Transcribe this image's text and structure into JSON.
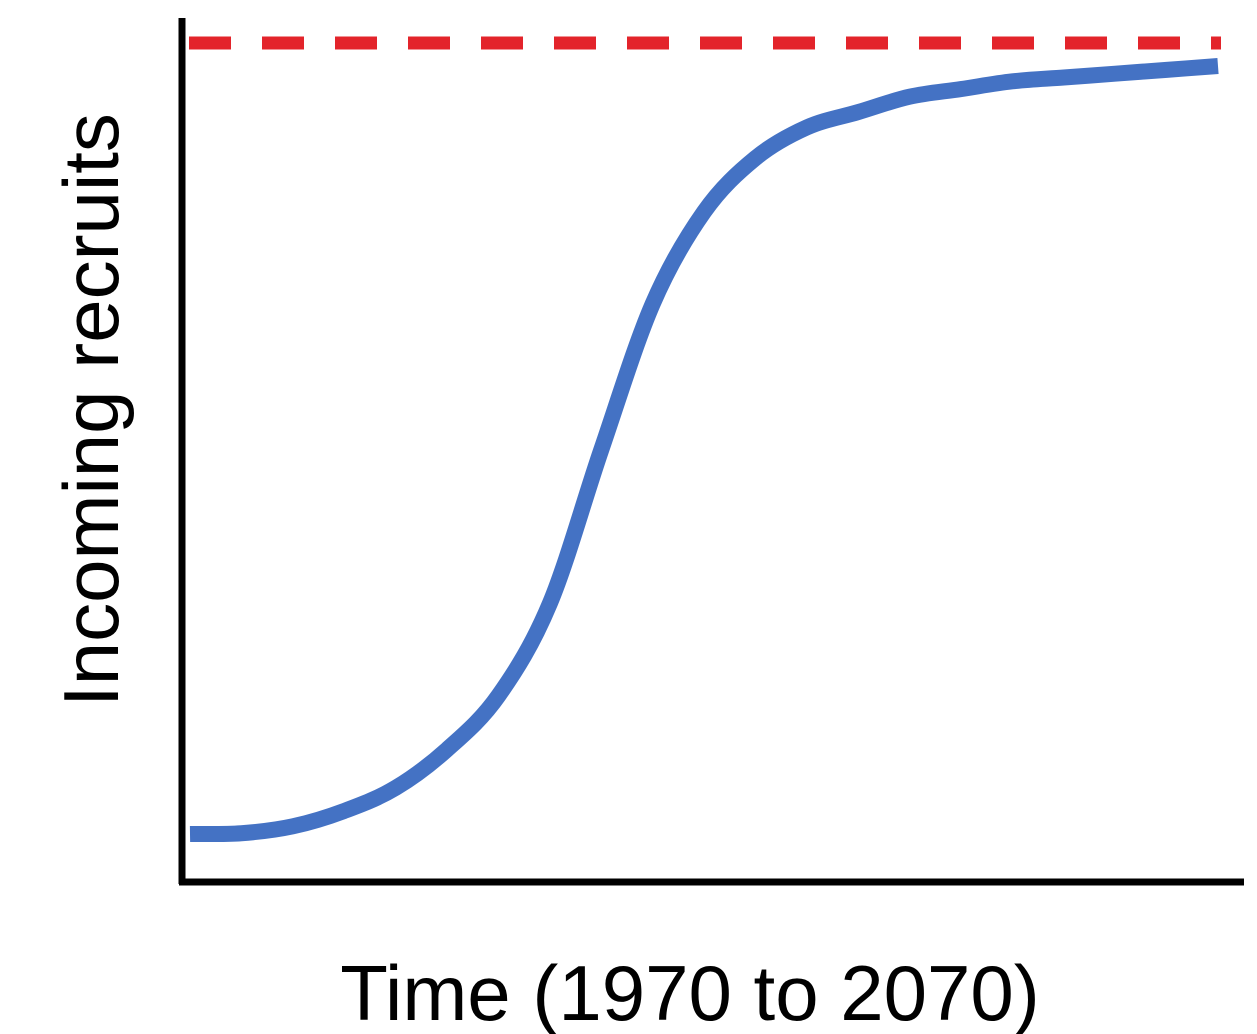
{
  "chart_data": {
    "type": "line",
    "title": "",
    "xlabel": "Time (1970 to 2070)",
    "ylabel": "Incoming recruits",
    "xlim": [
      1970,
      2070
    ],
    "ylim": [
      0,
      1.05
    ],
    "grid": false,
    "legend": "none",
    "series": [
      {
        "x": [
          1970,
          1975,
          1980,
          1985,
          1990,
          1995,
          2000,
          2005,
          2010,
          2015,
          2020,
          2025,
          2030,
          2035,
          2040,
          2045,
          2050,
          2055,
          2060,
          2065,
          2070
        ],
        "values": [
          0.0,
          0.001,
          0.01,
          0.03,
          0.06,
          0.11,
          0.18,
          0.3,
          0.5,
          0.69,
          0.81,
          0.88,
          0.92,
          0.94,
          0.96,
          0.97,
          0.98,
          0.985,
          0.99,
          0.995,
          1.0
        ],
        "color": "#4472C4",
        "style": "solid"
      }
    ],
    "reference_lines": [
      {
        "y": 1.03,
        "color": "#E3242B",
        "style": "dashed"
      }
    ]
  }
}
